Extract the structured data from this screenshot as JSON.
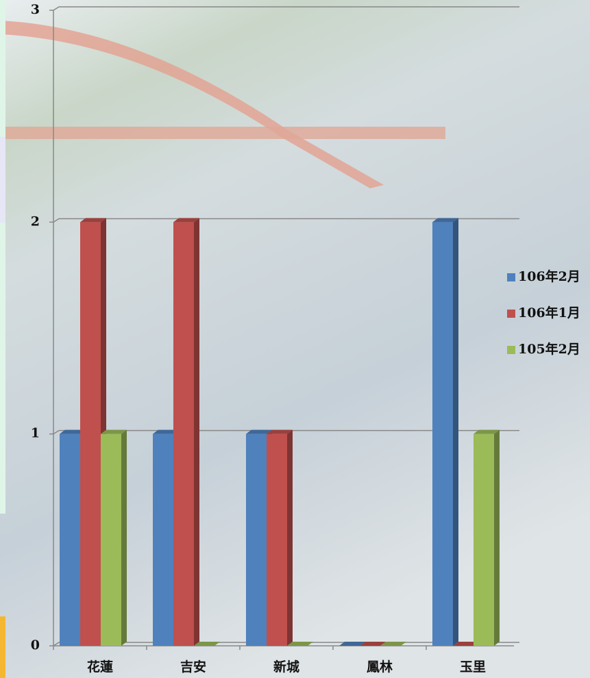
{
  "chart_data": {
    "type": "bar3d",
    "categories": [
      "花蓮",
      "吉安",
      "新城",
      "鳳林",
      "玉里"
    ],
    "series": [
      {
        "name": "106年2月",
        "color": "#4f81bd",
        "values": [
          1,
          1,
          1,
          0,
          2
        ]
      },
      {
        "name": "106年1月",
        "color": "#c0504d",
        "values": [
          2,
          2,
          1,
          0,
          0
        ]
      },
      {
        "name": "105年2月",
        "color": "#9bbb59",
        "values": [
          1,
          0,
          0,
          0,
          1
        ]
      }
    ],
    "ylim": [
      0,
      3
    ],
    "yticks": [
      0,
      1,
      2,
      3
    ],
    "grid": true,
    "legend": "right"
  }
}
